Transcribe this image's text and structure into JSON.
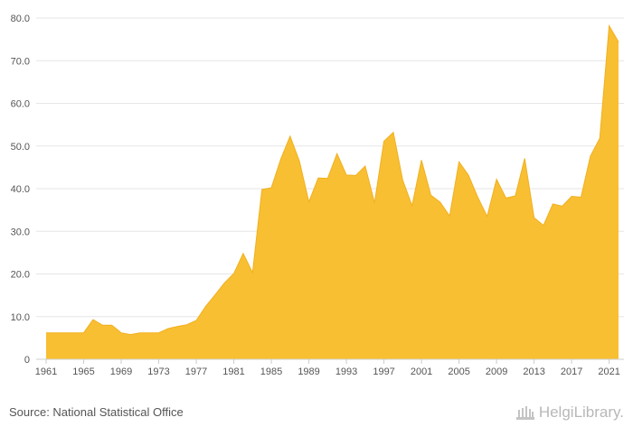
{
  "chart_data": {
    "type": "area",
    "x": [
      1961,
      1962,
      1963,
      1964,
      1965,
      1966,
      1967,
      1968,
      1969,
      1970,
      1971,
      1972,
      1973,
      1974,
      1975,
      1976,
      1977,
      1978,
      1979,
      1980,
      1981,
      1982,
      1983,
      1984,
      1985,
      1986,
      1987,
      1988,
      1989,
      1990,
      1991,
      1992,
      1993,
      1994,
      1995,
      1996,
      1997,
      1998,
      1999,
      2000,
      2001,
      2002,
      2003,
      2004,
      2005,
      2006,
      2007,
      2008,
      2009,
      2010,
      2011,
      2012,
      2013,
      2014,
      2015,
      2016,
      2017,
      2018,
      2019,
      2020,
      2021,
      2022
    ],
    "values": [
      6.2,
      6.2,
      6.2,
      6.2,
      6.2,
      9.3,
      8.0,
      8.0,
      6.2,
      5.8,
      6.2,
      6.2,
      6.2,
      7.2,
      7.7,
      8.1,
      9.1,
      12.4,
      15.1,
      17.9,
      20.1,
      24.8,
      20.3,
      39.8,
      40.2,
      46.9,
      52.3,
      46.4,
      36.9,
      42.5,
      42.4,
      48.2,
      43.2,
      43.1,
      45.3,
      36.7,
      51.1,
      53.2,
      42.0,
      36.0,
      46.7,
      38.5,
      36.8,
      33.6,
      46.3,
      43.2,
      38.0,
      33.5,
      42.2,
      37.8,
      38.3,
      47.1,
      33.2,
      31.4,
      36.4,
      35.9,
      38.2,
      38.0,
      47.6,
      51.8,
      78.2,
      74.4
    ],
    "x_ticks": [
      "1961",
      "1965",
      "1969",
      "1973",
      "1977",
      "1981",
      "1985",
      "1989",
      "1993",
      "1997",
      "2001",
      "2005",
      "2009",
      "2013",
      "2017",
      "2021"
    ],
    "y_ticks": [
      "0",
      "10.0",
      "20.0",
      "30.0",
      "40.0",
      "50.0",
      "60.0",
      "70.0",
      "80.0"
    ],
    "ylim": [
      0,
      80
    ],
    "grid": true,
    "fill_color": "#f9bf32",
    "line_color": "#f0b020"
  },
  "footer": {
    "source": "Source: National Statistical Office",
    "logo_text": "HelgiLibrary."
  },
  "colors": {
    "grid": "#e6e6e6",
    "text": "#555555",
    "logo": "#b8b8b8"
  }
}
